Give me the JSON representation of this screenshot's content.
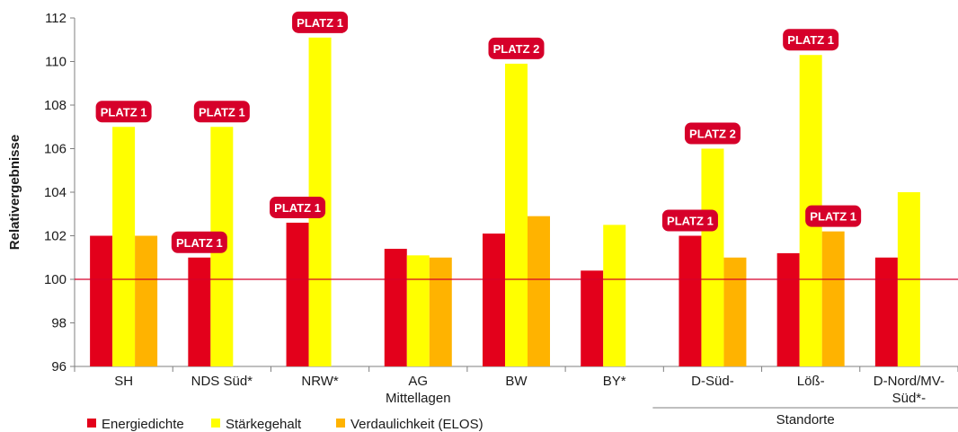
{
  "chart_data": {
    "type": "bar",
    "ylabel": "Relativergebnisse",
    "ylim": [
      96,
      112
    ],
    "yticks": [
      96,
      98,
      100,
      102,
      104,
      106,
      108,
      110,
      112
    ],
    "reference_line": 100,
    "categories": [
      [
        "SH"
      ],
      [
        "NDS Süd*"
      ],
      [
        "NRW*"
      ],
      [
        "AG",
        "Mittellagen"
      ],
      [
        "BW"
      ],
      [
        "BY*"
      ],
      [
        "D-Süd-"
      ],
      [
        "Löß-"
      ],
      [
        "D-Nord/MV-",
        "Süd*-"
      ]
    ],
    "group_label": "Standorte",
    "group_range": [
      6,
      8
    ],
    "series": [
      {
        "name": "Energiedichte",
        "color": "#e3001b",
        "values": [
          102.0,
          101.0,
          102.6,
          101.4,
          102.1,
          100.4,
          102.0,
          101.2,
          101.0
        ]
      },
      {
        "name": "Stärkegehalt",
        "color": "#ffff00",
        "values": [
          107.0,
          107.0,
          111.1,
          101.1,
          109.9,
          102.5,
          106.0,
          110.3,
          104.0
        ]
      },
      {
        "name": "Verdaulichkeit (ELOS)",
        "color": "#ffb300",
        "values": [
          102.0,
          null,
          null,
          101.0,
          102.9,
          null,
          101.0,
          102.2,
          null
        ]
      }
    ],
    "annotations": [
      {
        "text": "PLATZ 1",
        "category": 0,
        "series": 1
      },
      {
        "text": "PLATZ 1",
        "category": 1,
        "series": 0
      },
      {
        "text": "PLATZ 1",
        "category": 1,
        "series": 1
      },
      {
        "text": "PLATZ 1",
        "category": 2,
        "series": 0
      },
      {
        "text": "PLATZ 1",
        "category": 2,
        "series": 1
      },
      {
        "text": "PLATZ 2",
        "category": 4,
        "series": 1
      },
      {
        "text": "PLATZ 1",
        "category": 6,
        "series": 0
      },
      {
        "text": "PLATZ 2",
        "category": 6,
        "series": 1
      },
      {
        "text": "PLATZ 1",
        "category": 7,
        "series": 1
      },
      {
        "text": "PLATZ 1",
        "category": 7,
        "series": 2
      }
    ],
    "legend_position": "bottom-left",
    "badge_color": "#d6002a",
    "reference_line_color": "#d6002a",
    "grid": false
  }
}
